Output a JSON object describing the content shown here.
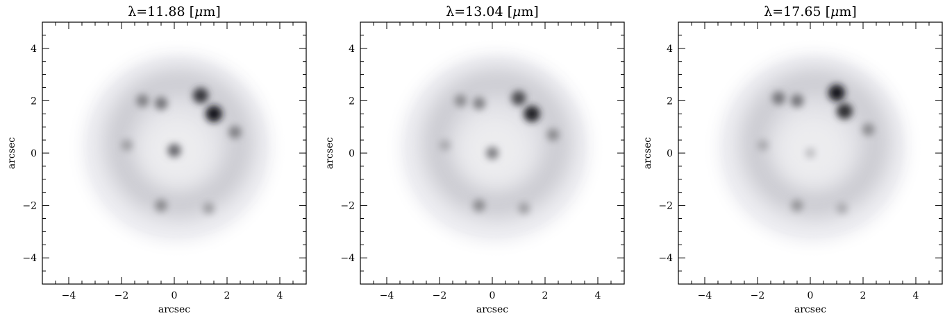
{
  "figure": {
    "panels": [
      {
        "title_prefix": "λ=11.88 [",
        "title_mu": "μ",
        "title_suffix": "m]",
        "xlabel": "arcsec",
        "ylabel": "arcsec",
        "bright_knots": [
          {
            "x": 1.5,
            "y": 1.5,
            "strength": 1.0
          },
          {
            "x": 1.0,
            "y": 2.2,
            "strength": 0.85
          },
          {
            "x": 2.3,
            "y": 0.8,
            "strength": 0.5
          },
          {
            "x": -1.2,
            "y": 2.0,
            "strength": 0.5
          },
          {
            "x": -0.5,
            "y": 1.9,
            "strength": 0.55
          },
          {
            "x": 0.0,
            "y": 0.1,
            "strength": 0.6
          },
          {
            "x": -1.8,
            "y": 0.3,
            "strength": 0.35
          },
          {
            "x": -0.5,
            "y": -2.0,
            "strength": 0.45
          },
          {
            "x": 1.3,
            "y": -2.1,
            "strength": 0.35
          }
        ]
      },
      {
        "title_prefix": "λ=13.04 [",
        "title_mu": "μ",
        "title_suffix": "m]",
        "xlabel": "arcsec",
        "ylabel": "arcsec",
        "bright_knots": [
          {
            "x": 1.5,
            "y": 1.5,
            "strength": 0.95
          },
          {
            "x": 1.0,
            "y": 2.1,
            "strength": 0.75
          },
          {
            "x": 2.3,
            "y": 0.7,
            "strength": 0.45
          },
          {
            "x": -1.2,
            "y": 2.0,
            "strength": 0.45
          },
          {
            "x": -0.5,
            "y": 1.9,
            "strength": 0.5
          },
          {
            "x": 0.0,
            "y": 0.0,
            "strength": 0.5
          },
          {
            "x": -1.8,
            "y": 0.3,
            "strength": 0.3
          },
          {
            "x": -0.5,
            "y": -2.0,
            "strength": 0.45
          },
          {
            "x": 1.2,
            "y": -2.1,
            "strength": 0.35
          }
        ]
      },
      {
        "title_prefix": "λ=17.65 [",
        "title_mu": "μ",
        "title_suffix": "m]",
        "xlabel": "arcsec",
        "ylabel": "arcsec",
        "bright_knots": [
          {
            "x": 1.0,
            "y": 2.3,
            "strength": 1.0
          },
          {
            "x": 1.3,
            "y": 1.6,
            "strength": 0.9
          },
          {
            "x": 2.2,
            "y": 0.9,
            "strength": 0.45
          },
          {
            "x": -1.2,
            "y": 2.1,
            "strength": 0.55
          },
          {
            "x": -0.5,
            "y": 2.0,
            "strength": 0.55
          },
          {
            "x": 0.0,
            "y": 0.0,
            "strength": 0.2
          },
          {
            "x": -1.8,
            "y": 0.3,
            "strength": 0.3
          },
          {
            "x": -0.5,
            "y": -2.0,
            "strength": 0.4
          },
          {
            "x": 1.2,
            "y": -2.1,
            "strength": 0.3
          }
        ]
      }
    ],
    "axes": {
      "xlim": [
        -5,
        5
      ],
      "ylim": [
        -5,
        5
      ],
      "major_ticks": [
        -4,
        -2,
        0,
        2,
        4
      ],
      "minor_step": 0.5,
      "x_tick_labels": [
        "−4",
        "−2",
        "0",
        "2",
        "4"
      ],
      "y_tick_labels": [
        "−4",
        "−2",
        "0",
        "2",
        "4"
      ]
    }
  }
}
